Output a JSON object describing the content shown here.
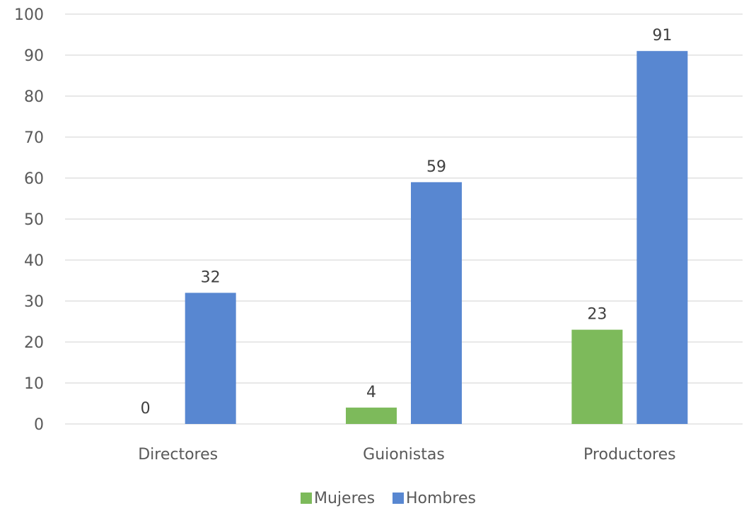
{
  "chart_data": {
    "type": "bar",
    "categories": [
      "Directores",
      "Guionistas",
      "Productores"
    ],
    "series": [
      {
        "name": "Mujeres",
        "values": [
          0,
          4,
          23
        ],
        "color": "#7dba5b"
      },
      {
        "name": "Hombres",
        "values": [
          32,
          59,
          91
        ],
        "color": "#5887d1"
      }
    ],
    "ylim": [
      0,
      100
    ],
    "yticks": [
      0,
      10,
      20,
      30,
      40,
      50,
      60,
      70,
      80,
      90,
      100
    ],
    "grid": true,
    "legend_position": "bottom",
    "data_labels": true,
    "title": "",
    "xlabel": "",
    "ylabel": ""
  }
}
